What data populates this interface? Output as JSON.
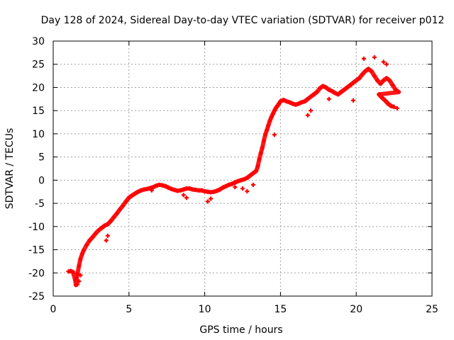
{
  "chart_data": {
    "type": "scatter",
    "title": "Day 128 of 2024, Sidereal Day-to-day VTEC variation (SDTVAR) for receiver p012",
    "xlabel": "GPS time / hours",
    "ylabel": "SDTVAR / TECUs",
    "xlim": [
      0,
      25
    ],
    "ylim": [
      -25,
      30
    ],
    "x_ticks": [
      0,
      5,
      10,
      15,
      20,
      25
    ],
    "y_ticks": [
      -25,
      -20,
      -15,
      -10,
      -5,
      0,
      5,
      10,
      15,
      20,
      25,
      30
    ],
    "grid": true,
    "marker": "plus",
    "colors": {
      "series": "#ff0000",
      "axis": "#000000",
      "grid": "#a0a0a0"
    },
    "series": [
      {
        "name": "SDTVAR",
        "x": [
          1.0,
          1.15,
          1.3,
          1.45,
          1.5,
          1.55,
          1.6,
          1.7,
          1.8,
          1.9,
          2.0,
          2.2,
          2.4,
          2.6,
          2.8,
          3.0,
          3.2,
          3.4,
          3.6,
          3.8,
          4.0,
          4.2,
          4.4,
          4.6,
          4.8,
          5.0,
          5.2,
          5.4,
          5.6,
          5.8,
          6.0,
          6.2,
          6.4,
          6.6,
          6.8,
          7.0,
          7.2,
          7.4,
          7.6,
          7.8,
          8.0,
          8.2,
          8.4,
          8.6,
          8.8,
          9.0,
          9.2,
          9.4,
          9.6,
          9.8,
          10.0,
          10.2,
          10.4,
          10.6,
          10.8,
          11.0,
          11.2,
          11.4,
          11.6,
          11.8,
          12.0,
          12.2,
          12.4,
          12.6,
          12.8,
          13.0,
          13.2,
          13.4,
          13.5,
          13.6,
          13.7,
          13.8,
          13.9,
          14.0,
          14.1,
          14.2,
          14.3,
          14.4,
          14.5,
          14.6,
          14.7,
          14.8,
          14.9,
          15.0,
          15.2,
          15.4,
          15.6,
          15.8,
          16.0,
          16.2,
          16.4,
          16.6,
          16.8,
          17.0,
          17.2,
          17.4,
          17.6,
          17.8,
          18.0,
          18.2,
          18.4,
          18.6,
          18.8,
          19.0,
          19.2,
          19.4,
          19.6,
          19.8,
          20.0,
          20.2,
          20.4,
          20.6,
          20.8,
          21.0,
          21.2,
          21.4,
          21.6,
          21.8,
          22.0,
          22.2,
          22.4,
          22.6,
          22.8,
          21.5,
          21.7,
          21.9,
          22.1,
          22.3,
          22.5,
          22.7,
          1.6,
          1.7,
          1.8,
          3.5,
          3.6,
          6.5,
          8.6,
          8.8,
          10.2,
          10.4,
          12.0,
          12.5,
          12.8,
          13.2,
          14.6,
          16.8,
          17.0,
          18.2,
          19.8,
          20.5,
          21.2,
          21.8,
          22.0
        ],
        "y": [
          -19.7,
          -19.6,
          -19.8,
          -21.5,
          -22.6,
          -21.0,
          -20.2,
          -18.5,
          -17.0,
          -16.0,
          -15.2,
          -14.0,
          -13.0,
          -12.3,
          -11.5,
          -10.8,
          -10.3,
          -9.8,
          -9.5,
          -8.8,
          -8.0,
          -7.2,
          -6.3,
          -5.5,
          -4.6,
          -3.8,
          -3.3,
          -2.9,
          -2.5,
          -2.2,
          -2.0,
          -1.9,
          -1.7,
          -1.5,
          -1.2,
          -1.0,
          -1.1,
          -1.3,
          -1.6,
          -1.9,
          -2.1,
          -2.3,
          -2.2,
          -2.0,
          -1.8,
          -1.8,
          -2.0,
          -2.1,
          -2.2,
          -2.2,
          -2.4,
          -2.5,
          -2.6,
          -2.5,
          -2.3,
          -2.0,
          -1.6,
          -1.3,
          -1.0,
          -0.8,
          -0.5,
          -0.2,
          0.0,
          0.2,
          0.5,
          1.0,
          1.5,
          2.0,
          3.0,
          4.5,
          5.8,
          7.0,
          8.5,
          9.8,
          10.8,
          11.8,
          12.8,
          13.6,
          14.3,
          15.0,
          15.6,
          16.0,
          16.5,
          17.0,
          17.3,
          17.0,
          16.8,
          16.5,
          16.3,
          16.5,
          16.8,
          17.0,
          17.5,
          18.0,
          18.5,
          19.0,
          19.8,
          20.3,
          20.0,
          19.5,
          19.2,
          18.8,
          18.5,
          19.0,
          19.5,
          20.0,
          20.5,
          21.0,
          21.5,
          22.0,
          22.8,
          23.5,
          24.0,
          23.5,
          22.5,
          21.5,
          20.8,
          21.5,
          22.0,
          21.5,
          20.5,
          19.5,
          19.0,
          18.5,
          17.8,
          17.2,
          16.5,
          16.0,
          15.8,
          15.5,
          -22.5,
          -21.8,
          -20.5,
          -13.0,
          -12.0,
          -2.2,
          -3.2,
          -3.8,
          -4.6,
          -4.0,
          -1.5,
          -1.8,
          -2.4,
          -1.0,
          9.8,
          14.0,
          15.0,
          17.5,
          17.2,
          26.2,
          26.5,
          25.5,
          25.0
        ]
      }
    ]
  }
}
